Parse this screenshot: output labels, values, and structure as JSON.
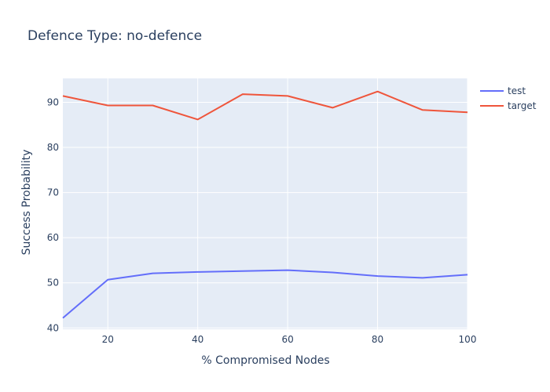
{
  "chart_data": {
    "type": "line",
    "title": "Defence Type: no-defence",
    "xlabel": "% Compromised Nodes",
    "ylabel": "Success Probability",
    "xlim": [
      10,
      100
    ],
    "ylim": [
      39.7,
      95.3
    ],
    "xticks": [
      20,
      40,
      60,
      80,
      100
    ],
    "yticks": [
      40,
      50,
      60,
      70,
      80,
      90
    ],
    "grid": true,
    "legend_position": "top-right",
    "x": [
      10,
      20,
      30,
      40,
      50,
      60,
      70,
      80,
      90,
      100
    ],
    "series": [
      {
        "name": "test",
        "color": "#636efa",
        "values": [
          42.2,
          50.7,
          52.1,
          52.4,
          52.6,
          52.8,
          52.3,
          51.5,
          51.1,
          51.8
        ]
      },
      {
        "name": "target",
        "color": "#ef553b",
        "values": [
          91.4,
          89.3,
          89.3,
          86.2,
          91.8,
          91.4,
          88.8,
          92.4,
          88.3,
          87.8
        ]
      }
    ]
  }
}
